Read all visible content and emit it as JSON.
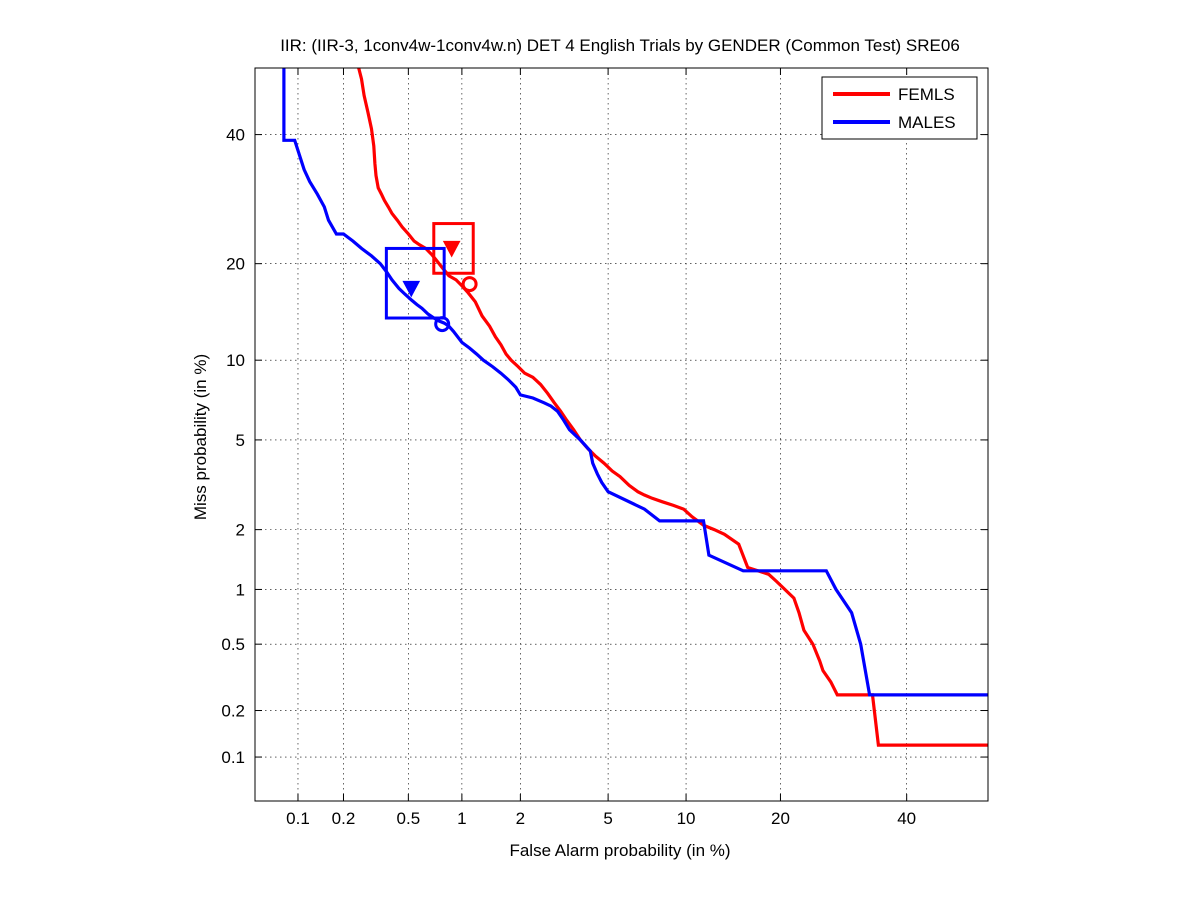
{
  "chart_data": {
    "type": "line",
    "title": "IIR: (IIR-3, 1conv4w-1conv4w.n) DET 4 English Trials by GENDER (Common Test) SRE06",
    "xlabel": "False Alarm probability (in %)",
    "ylabel": "Miss probability (in %)",
    "x_scale": "normal-deviate",
    "y_scale": "normal-deviate",
    "xlim": [
      0.05,
      55
    ],
    "ylim": [
      0.05,
      52
    ],
    "x_ticks": [
      0.1,
      0.2,
      0.5,
      1,
      2,
      5,
      10,
      20,
      40
    ],
    "x_tick_labels": [
      "0.1",
      "0.2",
      "0.5",
      "1",
      "2",
      "5",
      "10",
      "20",
      "40"
    ],
    "y_ticks": [
      0.1,
      0.2,
      0.5,
      1,
      2,
      5,
      10,
      20,
      40
    ],
    "y_tick_labels": [
      "0.1",
      "0.2",
      "0.5",
      "1",
      "2",
      "5",
      "10",
      "20",
      "40"
    ],
    "grid": true,
    "legend_position": "top-right",
    "series": [
      {
        "name": "FEMLS",
        "color": "#ff0000",
        "x": [
          0.25,
          0.26,
          0.27,
          0.285,
          0.3,
          0.31,
          0.315,
          0.32,
          0.33,
          0.345,
          0.36,
          0.38,
          0.4,
          0.43,
          0.46,
          0.5,
          0.54,
          0.58,
          0.63,
          0.68,
          0.72,
          0.78,
          0.85,
          0.93,
          1.0,
          1.08,
          1.18,
          1.28,
          1.4,
          1.5,
          1.6,
          1.7,
          1.8,
          1.95,
          2.1,
          2.3,
          2.5,
          2.7,
          2.9,
          3.1,
          3.3,
          3.55,
          3.8,
          4.1,
          4.4,
          4.8,
          5.2,
          5.6,
          6.1,
          6.6,
          7.0,
          7.5,
          8.2,
          9.0,
          9.8,
          10.5,
          11.5,
          12.5,
          13.5,
          15.0,
          16.0,
          18.5,
          19.5,
          21.8,
          22.5,
          23.2,
          24.5,
          25.5,
          26.0,
          27.2,
          28.2,
          34.0,
          35.0,
          55.0
        ],
        "y": [
          52.0,
          50.0,
          47.0,
          44.0,
          41.0,
          38.0,
          35.0,
          33.0,
          31.0,
          30.0,
          29.0,
          28.0,
          27.0,
          26.0,
          25.0,
          24.0,
          23.0,
          22.5,
          22.0,
          21.2,
          20.5,
          19.5,
          18.5,
          18.0,
          17.3,
          16.5,
          15.5,
          14.0,
          13.0,
          12.0,
          11.3,
          10.5,
          10.0,
          9.5,
          9.0,
          8.7,
          8.2,
          7.6,
          7.0,
          6.5,
          6.0,
          5.5,
          5.0,
          4.6,
          4.3,
          4.0,
          3.7,
          3.5,
          3.2,
          3.0,
          2.9,
          2.8,
          2.7,
          2.6,
          2.5,
          2.3,
          2.1,
          2.0,
          1.9,
          1.7,
          1.3,
          1.2,
          1.1,
          0.9,
          0.75,
          0.6,
          0.5,
          0.4,
          0.35,
          0.3,
          0.25,
          0.25,
          0.12,
          0.12
        ]
      },
      {
        "name": "MALES",
        "color": "#0000ff",
        "x": [
          0.08,
          0.08,
          0.095,
          0.11,
          0.12,
          0.135,
          0.15,
          0.16,
          0.18,
          0.2,
          0.23,
          0.26,
          0.3,
          0.34,
          0.37,
          0.4,
          0.44,
          0.48,
          0.52,
          0.56,
          0.6,
          0.65,
          0.7,
          0.75,
          0.8,
          0.85,
          0.9,
          1.0,
          1.1,
          1.2,
          1.3,
          1.45,
          1.6,
          1.75,
          1.9,
          2.0,
          2.3,
          2.6,
          2.8,
          3.0,
          3.2,
          3.4,
          3.8,
          4.2,
          4.3,
          4.5,
          4.7,
          5.0,
          7.0,
          8.0,
          11.5,
          12.0,
          15.5,
          26.5,
          28.0,
          30.5,
          32.0,
          33.5,
          55.0
        ],
        "y": [
          52.0,
          39.0,
          39.0,
          34.0,
          32.0,
          30.0,
          28.0,
          26.0,
          24.0,
          24.0,
          23.0,
          22.0,
          21.0,
          20.0,
          19.0,
          18.0,
          17.0,
          16.3,
          15.7,
          15.2,
          14.8,
          14.2,
          13.8,
          13.5,
          13.3,
          13.0,
          12.5,
          11.5,
          11.0,
          10.5,
          10.0,
          9.5,
          9.0,
          8.5,
          8.0,
          7.5,
          7.3,
          7.0,
          6.8,
          6.5,
          6.0,
          5.5,
          5.0,
          4.5,
          4.0,
          3.6,
          3.3,
          3.0,
          2.5,
          2.2,
          2.2,
          1.5,
          1.25,
          1.25,
          1.0,
          0.75,
          0.5,
          0.25,
          0.25
        ]
      }
    ],
    "markers": [
      {
        "series": "FEMLS",
        "shape": "triangle-down",
        "x": 0.88,
        "y": 22.0
      },
      {
        "series": "FEMLS",
        "shape": "circle",
        "x": 1.1,
        "y": 17.5
      },
      {
        "series": "FEMLS",
        "shape": "box",
        "x_range": [
          0.7,
          1.15
        ],
        "y_range": [
          18.8,
          25.5
        ]
      },
      {
        "series": "MALES",
        "shape": "triangle-down",
        "x": 0.52,
        "y": 17.0
      },
      {
        "series": "MALES",
        "shape": "circle",
        "x": 0.78,
        "y": 13.2
      },
      {
        "series": "MALES",
        "shape": "box",
        "x_range": [
          0.37,
          0.8
        ],
        "y_range": [
          13.8,
          22.0
        ]
      }
    ]
  }
}
